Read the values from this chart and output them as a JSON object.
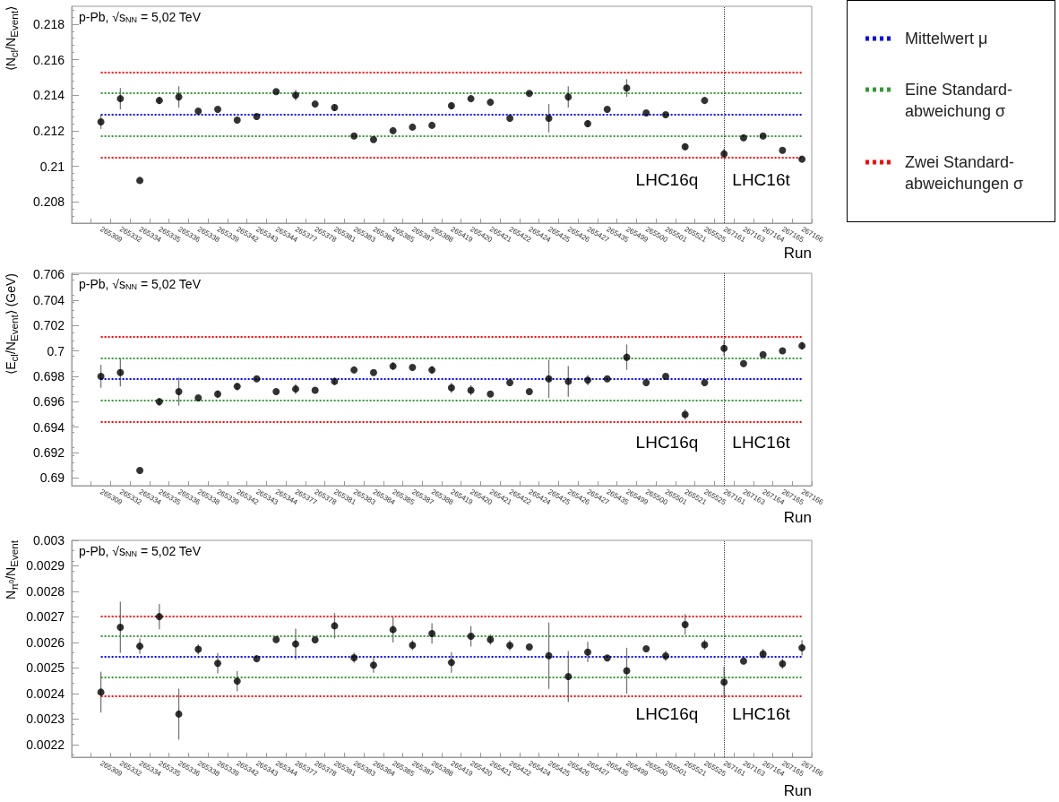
{
  "chart_data": [
    {
      "type": "scatter",
      "ylabel": "⟨N$_{cl}$/N$_{Event}$⟩",
      "xlabel": "Run",
      "marker": "circle",
      "color": "#000000",
      "legend": "right",
      "annotations": [
        "p-Pb, √s$_{NN}$ = 5,02 TeV",
        "LHC16q",
        "LHC16t"
      ],
      "categories": [
        null,
        "265309",
        "265332",
        "265334",
        "265335",
        "265336",
        "265338",
        "265339",
        "265342",
        "265343",
        "265344",
        "265377",
        "265378",
        "265381",
        "265383",
        "265384",
        "265385",
        "265387",
        "265388",
        "265419",
        "265420",
        "265421",
        "265422",
        "265424",
        "265425",
        "265426",
        "265427",
        "265435",
        "265499",
        "265500",
        "265501",
        "265521",
        "265525",
        "267161",
        "267163",
        "267164",
        "267165",
        "267166"
      ],
      "values": [
        null,
        0.2125,
        0.2138,
        0.2092,
        0.2137,
        0.2139,
        0.2131,
        0.2132,
        0.2126,
        0.2128,
        0.2142,
        0.214,
        0.2135,
        0.2133,
        0.2117,
        0.2115,
        0.212,
        0.2122,
        0.2123,
        0.2134,
        0.2138,
        0.2136,
        0.2127,
        0.2141,
        0.2127,
        0.2139,
        0.2124,
        0.2132,
        0.2144,
        0.213,
        0.2129,
        0.2111,
        0.2137,
        0.2107,
        0.2116,
        0.2117,
        0.2109,
        0.2104
      ],
      "errors": [
        null,
        0.0004,
        0.0006,
        null,
        0.0002,
        0.0006,
        null,
        null,
        null,
        null,
        null,
        0.0003,
        null,
        0.0002,
        null,
        null,
        null,
        null,
        null,
        0.0002,
        null,
        null,
        null,
        null,
        0.0008,
        0.0006,
        0.0002,
        null,
        0.0005,
        null,
        null,
        0.0002,
        null,
        0.0003,
        null,
        null,
        null,
        null
      ],
      "ylim": [
        0.2068,
        0.219
      ],
      "yticks": [
        0.208,
        0.21,
        0.212,
        0.214,
        0.216,
        0.218
      ],
      "ref_lines": [
        {
          "axis": "y",
          "value": 0.2129,
          "color": "#0000ff",
          "line_style": "dotted",
          "label": "Mittelwert μ"
        },
        {
          "axis": "y",
          "value": 0.2117,
          "color": "#339933",
          "line_style": "dotted",
          "label": "Eine Standard-abweichung σ"
        },
        {
          "axis": "y",
          "value": 0.2153,
          "color": "#ff0000",
          "line_style": "dotted",
          "label": "Zwei Standard-abweichungen σ"
        },
        {
          "axis": "y",
          "value": 0.2141,
          "color": "#339933",
          "line_style": "dotted"
        },
        {
          "axis": "y",
          "value": 0.2105,
          "color": "#ff0000",
          "line_style": "dotted"
        },
        {
          "axis": "x",
          "value": "267161",
          "color": "#333333",
          "line_style": "dotted"
        }
      ]
    },
    {
      "type": "scatter",
      "ylabel": "⟨E$_{cl}$/N$_{Event}$⟩ (GeV)",
      "xlabel": "Run",
      "marker": "circle",
      "color": "#000000",
      "annotations": [
        "p-Pb, √s$_{NN}$ = 5,02 TeV",
        "LHC16q",
        "LHC16t"
      ],
      "categories": [
        null,
        "265309",
        "265332",
        "265334",
        "265335",
        "265336",
        "265338",
        "265339",
        "265342",
        "265343",
        "265344",
        "265377",
        "265378",
        "265381",
        "265383",
        "265384",
        "265385",
        "265387",
        "265388",
        "265419",
        "265420",
        "265421",
        "265422",
        "265424",
        "265425",
        "265426",
        "265427",
        "265435",
        "265499",
        "265500",
        "265501",
        "265521",
        "265525",
        "267161",
        "267163",
        "267164",
        "267165",
        "267166"
      ],
      "values": [
        null,
        0.698,
        0.6983,
        0.6906,
        0.696,
        0.6968,
        0.6963,
        0.6966,
        0.6972,
        0.6978,
        0.6968,
        0.697,
        0.6969,
        0.6976,
        0.6985,
        0.6983,
        0.6988,
        0.6987,
        0.6985,
        0.6971,
        0.6969,
        0.6966,
        0.6975,
        0.6968,
        0.6978,
        0.6976,
        0.6977,
        0.6978,
        0.6995,
        0.6975,
        0.698,
        0.695,
        0.6975,
        0.7002,
        0.699,
        0.6997,
        0.7,
        0.7004
      ],
      "errors": [
        null,
        0.0009,
        0.0011,
        null,
        0.0003,
        0.0011,
        null,
        0.0003,
        0.0003,
        null,
        null,
        0.0004,
        null,
        0.0003,
        null,
        null,
        0.0003,
        null,
        0.0003,
        0.0004,
        0.0004,
        null,
        null,
        null,
        0.0015,
        0.0012,
        0.0004,
        null,
        0.001,
        null,
        null,
        0.0004,
        null,
        0.0006,
        null,
        null,
        null,
        0.0003
      ],
      "ylim": [
        0.6894,
        0.7061
      ],
      "yticks": [
        0.69,
        0.692,
        0.694,
        0.696,
        0.698,
        0.7,
        0.702,
        0.704,
        0.706
      ],
      "ref_lines": [
        {
          "axis": "y",
          "value": 0.7011,
          "color": "#ff0000",
          "line_style": "dotted"
        },
        {
          "axis": "y",
          "value": 0.6994,
          "color": "#339933",
          "line_style": "dotted"
        },
        {
          "axis": "y",
          "value": 0.6978,
          "color": "#0000ff",
          "line_style": "dotted"
        },
        {
          "axis": "y",
          "value": 0.6961,
          "color": "#339933",
          "line_style": "dotted"
        },
        {
          "axis": "y",
          "value": 0.6944,
          "color": "#ff0000",
          "line_style": "dotted"
        },
        {
          "axis": "x",
          "value": "267161",
          "color": "#333333",
          "line_style": "dotted"
        }
      ]
    },
    {
      "type": "scatter",
      "ylabel": "N$_{π⁰}$/N$_{Event}$",
      "xlabel": "Run",
      "marker": "circle",
      "color": "#000000",
      "annotations": [
        "p-Pb, √s$_{NN}$ = 5,02 TeV",
        "LHC16q",
        "LHC16t"
      ],
      "categories": [
        null,
        "265309",
        "265332",
        "265334",
        "265335",
        "265336",
        "265338",
        "265339",
        "265342",
        "265343",
        "265344",
        "265377",
        "265378",
        "265381",
        "265383",
        "265384",
        "265385",
        "265387",
        "265388",
        "265419",
        "265420",
        "265421",
        "265422",
        "265424",
        "265425",
        "265426",
        "265427",
        "265435",
        "265499",
        "265500",
        "265501",
        "265521",
        "265525",
        "267161",
        "267163",
        "267164",
        "267165",
        "267166"
      ],
      "values": [
        null,
        0.002405,
        0.002659,
        0.002585,
        0.002701,
        0.002319,
        0.002573,
        0.002518,
        0.002448,
        0.002536,
        0.002611,
        0.002594,
        0.00261,
        0.002665,
        0.00254,
        0.002511,
        0.00265,
        0.002589,
        0.002635,
        0.002521,
        0.002624,
        0.002611,
        0.002588,
        0.002582,
        0.002548,
        0.002466,
        0.002562,
        0.002539,
        0.002489,
        0.002575,
        0.002547,
        0.00267,
        0.002591,
        0.002444,
        0.002527,
        0.002555,
        0.002516,
        0.002579
      ],
      "errors": [
        null,
        8e-05,
        0.0001,
        3e-05,
        5e-05,
        0.0001,
        2e-05,
        4e-05,
        4e-05,
        null,
        null,
        6e-05,
        null,
        5e-05,
        2e-05,
        3e-05,
        5e-05,
        2e-05,
        4e-05,
        4e-05,
        4e-05,
        2e-05,
        2e-05,
        null,
        0.00013,
        0.0001,
        4e-05,
        null,
        9e-05,
        null,
        2e-05,
        4e-05,
        2e-05,
        6e-05,
        null,
        2e-05,
        2e-05,
        3e-05
      ],
      "ylim": [
        0.00215,
        0.003
      ],
      "yticks": [
        0.0022,
        0.0023,
        0.0024,
        0.0025,
        0.0026,
        0.0027,
        0.0028,
        0.0029,
        0.003
      ],
      "ref_lines": [
        {
          "axis": "y",
          "value": 0.002701,
          "color": "#ff0000",
          "line_style": "dotted"
        },
        {
          "axis": "y",
          "value": 0.002624,
          "color": "#339933",
          "line_style": "dotted"
        },
        {
          "axis": "y",
          "value": 0.002544,
          "color": "#0000ff",
          "line_style": "dotted"
        },
        {
          "axis": "y",
          "value": 0.002465,
          "color": "#339933",
          "line_style": "dotted"
        },
        {
          "axis": "y",
          "value": 0.002388,
          "color": "#ff0000",
          "line_style": "dotted"
        },
        {
          "axis": "x",
          "value": "267161",
          "color": "#333333",
          "line_style": "dotted"
        }
      ]
    }
  ]
}
